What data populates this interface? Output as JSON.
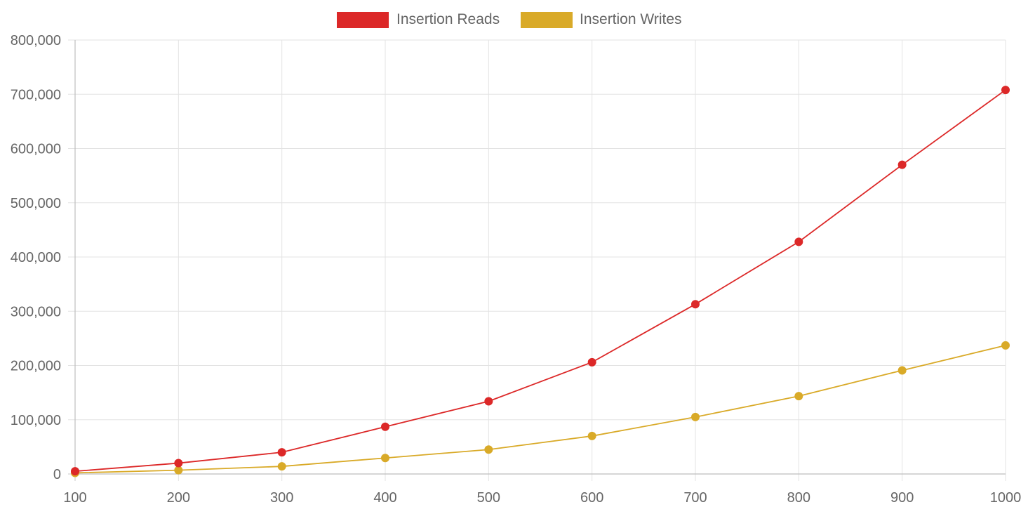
{
  "chart_data": {
    "type": "line",
    "title": "",
    "xlabel": "",
    "ylabel": "",
    "x": [
      100,
      200,
      300,
      400,
      500,
      600,
      700,
      800,
      900,
      1000
    ],
    "x_tick_labels": [
      "100",
      "200",
      "300",
      "400",
      "500",
      "600",
      "700",
      "800",
      "900",
      "1000"
    ],
    "ylim": [
      0,
      800000
    ],
    "y_ticks": [
      0,
      100000,
      200000,
      300000,
      400000,
      500000,
      600000,
      700000,
      800000
    ],
    "y_tick_labels": [
      "0",
      "100,000",
      "200,000",
      "300,000",
      "400,000",
      "500,000",
      "600,000",
      "700,000",
      "800,000"
    ],
    "grid": true,
    "legend_position": "top-center",
    "series": [
      {
        "name": "Insertion Reads",
        "color": "#dc2828",
        "values": [
          5000,
          20000,
          40000,
          87000,
          134000,
          206000,
          313000,
          428000,
          570000,
          708000
        ]
      },
      {
        "name": "Insertion Writes",
        "color": "#d9aa28",
        "values": [
          2000,
          7000,
          14000,
          29500,
          45000,
          70000,
          105000,
          143500,
          191000,
          237000
        ]
      }
    ]
  }
}
